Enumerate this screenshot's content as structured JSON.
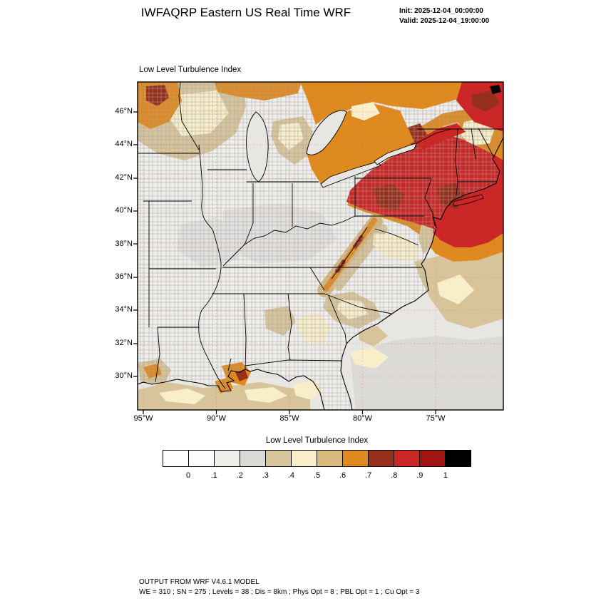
{
  "header": {
    "title": "IWFAQRP Eastern US Real Time WRF",
    "init_line": "Init: 2025-12-04_00:00:00",
    "valid_line": "Valid: 2025-12-04_19:00:00"
  },
  "map": {
    "title": "Low Level Turbulence Index",
    "lat_ticks": [
      "46°N",
      "44°N",
      "42°N",
      "40°N",
      "38°N",
      "36°N",
      "34°N",
      "32°N",
      "30°N"
    ],
    "lon_ticks": [
      "95°W",
      "90°W",
      "85°W",
      "80°W",
      "75°W"
    ]
  },
  "colorbar": {
    "label": "Low Level Turbulence Index",
    "tick_labels": [
      "0",
      ".1",
      ".2",
      ".3",
      ".4",
      ".5",
      ".6",
      ".7",
      ".8",
      ".9",
      "1"
    ],
    "colors": [
      "#ffffff",
      "#fdfcfa",
      "#f0efec",
      "#dcdad6",
      "#d7c49b",
      "#f8eeca",
      "#d8b87c",
      "#df8a21",
      "#96301d",
      "#cb2727",
      "#a31414",
      "#000000"
    ]
  },
  "footer": {
    "line1": "OUTPUT FROM WRF V4.6.1 MODEL",
    "line2": "WE = 310 ; SN = 275 ; Levels = 38 ; Dis = 8km ; Phys Opt = 8 ; PBL Opt = 1 ; Cu Opt = 3"
  },
  "chart_data": {
    "type": "heatmap",
    "title": "Low Level Turbulence Index",
    "scale_ticks": [
      0,
      0.1,
      0.2,
      0.3,
      0.4,
      0.5,
      0.6,
      0.7,
      0.8,
      0.9,
      1
    ],
    "scale_colors": [
      "#ffffff",
      "#fdfcfa",
      "#f0efec",
      "#dcdad6",
      "#d7c49b",
      "#f8eeca",
      "#d8b87c",
      "#df8a21",
      "#96301d",
      "#cb2727",
      "#a31414",
      "#000000"
    ],
    "lat_axis_deg_n": [
      46,
      44,
      42,
      40,
      38,
      36,
      34,
      32,
      30
    ],
    "lon_axis_deg_w": [
      95,
      90,
      85,
      80,
      75
    ],
    "regions": [
      {
        "area": "New York / Pennsylvania / New Jersey and adjacent Atlantic",
        "value": "0.8-0.9 (red) with 0.7-0.8 (maroon) patches"
      },
      {
        "area": "Southeast Canada / St. Lawrence and top-right corner",
        "value": "0.6-0.9 (orange to maroon)"
      },
      {
        "area": "Northern New England",
        "value": "0.4-0.7 mixed (cream/tan/orange)"
      },
      {
        "area": "Upper Midwest (Minnesota/Wisconsin)",
        "value": "0.3-0.8 patches, orange/maroon core top-left"
      },
      {
        "area": "Appalachians (WV to NC)",
        "value": "0.5-0.8 narrow diagonal band"
      },
      {
        "area": "Ohio Valley, Midwest interior and Southeast interior",
        "value": "0-0.3 (white/gray)"
      },
      {
        "area": "Louisiana Gulf Coast",
        "value": "isolated 0.6-0.8 spots"
      },
      {
        "area": "Southeast Atlantic offshore",
        "value": "0.3-0.5 (tan/cream), gray farther south"
      }
    ]
  }
}
